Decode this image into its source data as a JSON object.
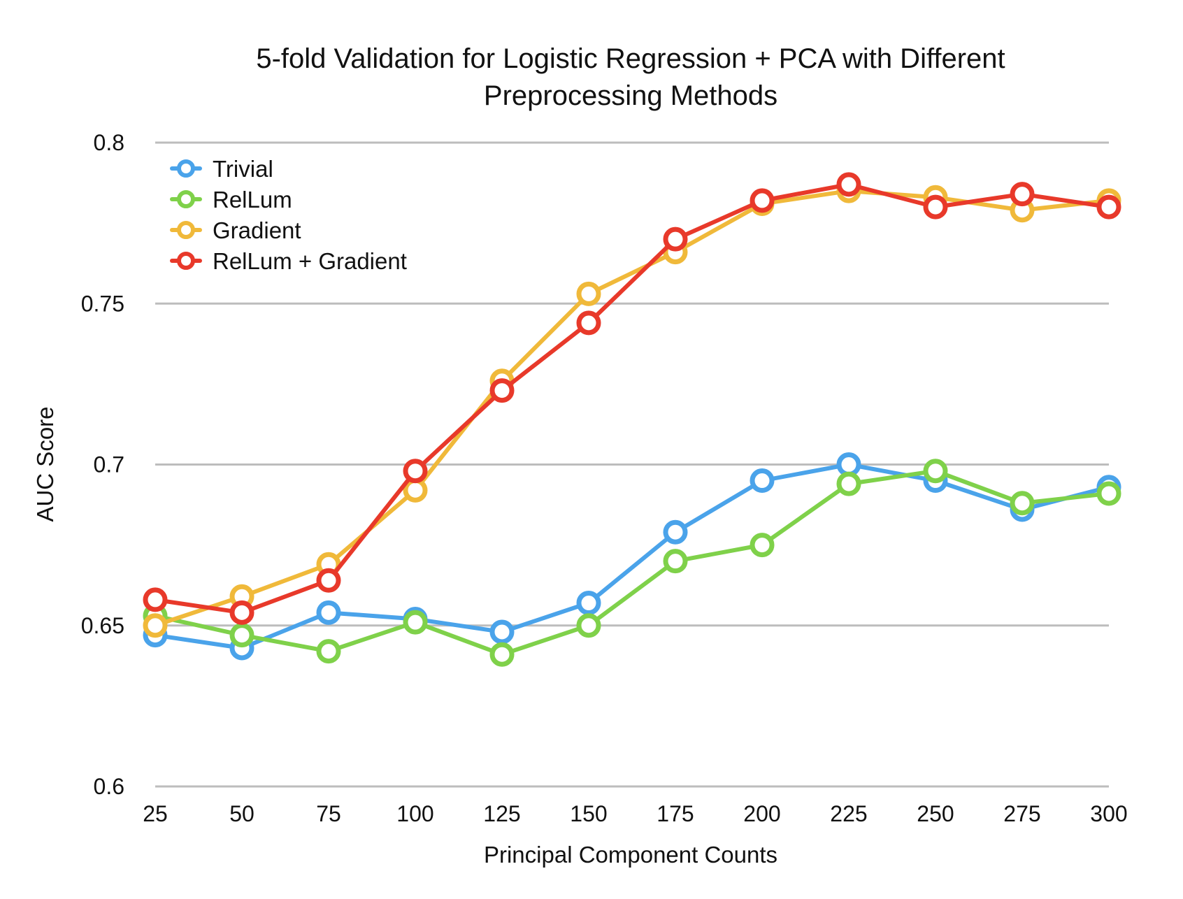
{
  "chart_data": {
    "type": "line",
    "title_lines": [
      "5-fold Validation for Logistic Regression + PCA with Different",
      "Preprocessing Methods"
    ],
    "xlabel": "Principal Component Counts",
    "ylabel": "AUC Score",
    "x": [
      25,
      50,
      75,
      100,
      125,
      150,
      175,
      200,
      225,
      250,
      275,
      300
    ],
    "x_tick_labels": [
      "25",
      "50",
      "75",
      "100",
      "125",
      "150",
      "175",
      "200",
      "225",
      "250",
      "275",
      "300"
    ],
    "ylim": [
      0.6,
      0.8
    ],
    "y_ticks": [
      0.6,
      0.65,
      0.7,
      0.75,
      0.8
    ],
    "y_tick_labels": [
      "0.6",
      "0.65",
      "0.7",
      "0.75",
      "0.8"
    ],
    "grid": true,
    "legend_position": "top-left",
    "series": [
      {
        "name": "Trivial",
        "color": "#4aa3ea",
        "values": [
          0.647,
          0.643,
          0.654,
          0.652,
          0.648,
          0.657,
          0.679,
          0.695,
          0.7,
          0.695,
          0.686,
          0.693
        ]
      },
      {
        "name": "RelLum",
        "color": "#7fd14a",
        "values": [
          0.653,
          0.647,
          0.642,
          0.651,
          0.641,
          0.65,
          0.67,
          0.675,
          0.694,
          0.698,
          0.688,
          0.691
        ]
      },
      {
        "name": "Gradient",
        "color": "#f0b93a",
        "values": [
          0.65,
          0.659,
          0.669,
          0.692,
          0.726,
          0.753,
          0.766,
          0.781,
          0.785,
          0.783,
          0.779,
          0.782
        ]
      },
      {
        "name": "RelLum + Gradient",
        "color": "#e8392a",
        "values": [
          0.658,
          0.654,
          0.664,
          0.698,
          0.723,
          0.744,
          0.77,
          0.782,
          0.787,
          0.78,
          0.784,
          0.78
        ]
      }
    ]
  }
}
